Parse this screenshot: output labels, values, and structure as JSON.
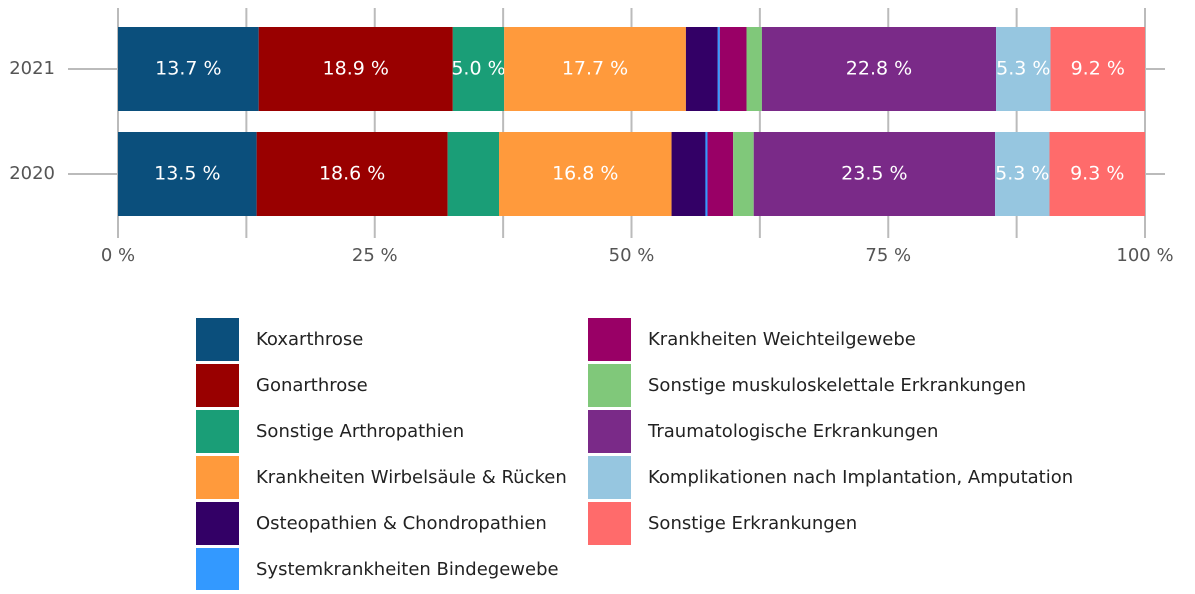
{
  "chart_data": {
    "type": "stacked_bar_horizontal",
    "categories": [
      "2021",
      "2020"
    ],
    "series": [
      {
        "name": "Koxarthrose",
        "color": "#0b4f7c",
        "values": [
          13.7,
          13.5
        ],
        "value_labels": [
          "13.7 %",
          "13.5 %"
        ]
      },
      {
        "name": "Gonarthrose",
        "color": "#990000",
        "values": [
          18.9,
          18.6
        ],
        "value_labels": [
          "18.9 %",
          "18.6 %"
        ]
      },
      {
        "name": "Sonstige Arthropathien",
        "color": "#1a9e77",
        "values": [
          5.0,
          5.0
        ],
        "value_labels": [
          "5.0 %",
          null
        ]
      },
      {
        "name": "Krankheiten Wirbelsäule & Rücken",
        "color": "#ff9a3c",
        "values": [
          17.7,
          16.8
        ],
        "value_labels": [
          "17.7 %",
          "16.8 %"
        ]
      },
      {
        "name": "Osteopathien & Chondropathien",
        "color": "#330066",
        "values": [
          3.1,
          3.3
        ],
        "value_labels": [
          null,
          null
        ]
      },
      {
        "name": "Systemkrankheiten Bindegewebe",
        "color": "#3399ff",
        "values": [
          0.2,
          0.2
        ],
        "value_labels": [
          null,
          null
        ]
      },
      {
        "name": "Krankheiten Weichteilgewebe",
        "color": "#990066",
        "values": [
          2.6,
          2.5
        ],
        "value_labels": [
          null,
          null
        ]
      },
      {
        "name": "Sonstige muskuloskelettale Erkrankungen",
        "color": "#80c87a",
        "values": [
          1.5,
          2.0
        ],
        "value_labels": [
          null,
          null
        ]
      },
      {
        "name": "Traumatologische Erkrankungen",
        "color": "#7a2a88",
        "values": [
          22.8,
          23.5
        ],
        "value_labels": [
          "22.8 %",
          "23.5 %"
        ]
      },
      {
        "name": "Komplikationen nach Implantation, Amputation",
        "color": "#96c6e0",
        "values": [
          5.3,
          5.3
        ],
        "value_labels": [
          "5.3 %",
          "5.3 %"
        ]
      },
      {
        "name": "Sonstige Erkrankungen",
        "color": "#ff6b6b",
        "values": [
          9.2,
          9.3
        ],
        "value_labels": [
          "9.2 %",
          "9.3 %"
        ]
      }
    ],
    "xlim": [
      0,
      100
    ],
    "xticks": [
      {
        "value": 0,
        "label": "0 %"
      },
      {
        "value": 12.5
      },
      {
        "value": 25,
        "label": "25 %"
      },
      {
        "value": 37.5
      },
      {
        "value": 50,
        "label": "50 %"
      },
      {
        "value": 62.5
      },
      {
        "value": 75,
        "label": "75 %"
      },
      {
        "value": 87.5
      },
      {
        "value": 100,
        "label": "100 %"
      }
    ],
    "grid": true,
    "legend": "bottom"
  }
}
